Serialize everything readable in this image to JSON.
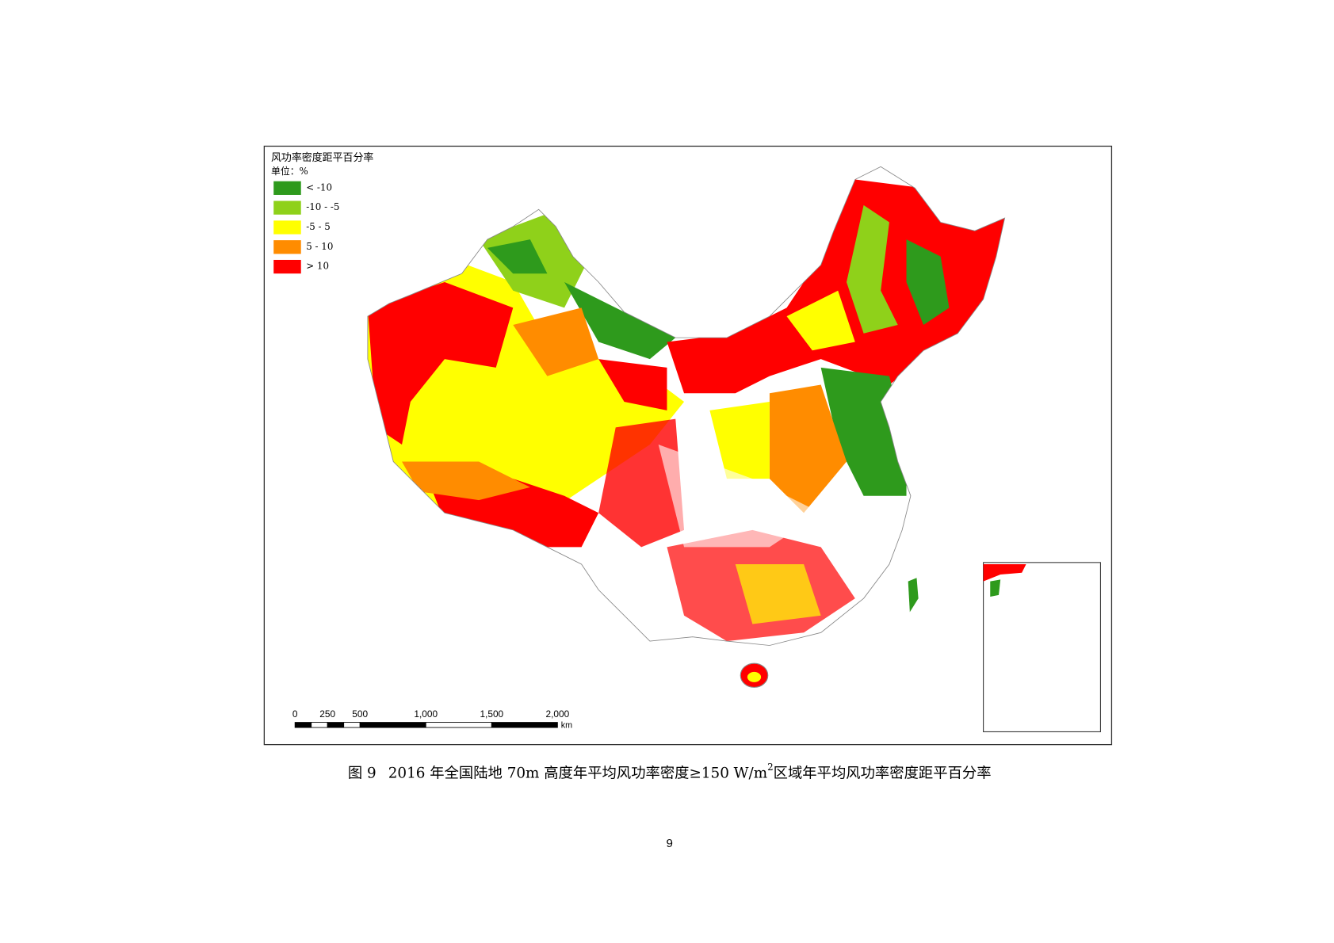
{
  "legend": {
    "title": "风功率密度距平百分率",
    "unit": "单位：%",
    "items": [
      {
        "label": "< -10",
        "color": "#2e9a1c"
      },
      {
        "label": "-10 - -5",
        "color": "#8fd11a"
      },
      {
        "label": "-5 - 5",
        "color": "#ffff00"
      },
      {
        "label": "5 - 10",
        "color": "#ff8c00"
      },
      {
        "label": "> 10",
        "color": "#ff0000"
      }
    ]
  },
  "scale_bar": {
    "labels": [
      "0",
      "250",
      "500",
      "1,000",
      "1,500",
      "2,000"
    ],
    "unit": "km"
  },
  "caption": {
    "prefix": "图 9",
    "text": "2016 年全国陆地 70m 高度年平均风功率密度≥150 W/m",
    "superscript": "2",
    "suffix": "区域年平均风功率密度距平百分率"
  },
  "page_number": "9"
}
